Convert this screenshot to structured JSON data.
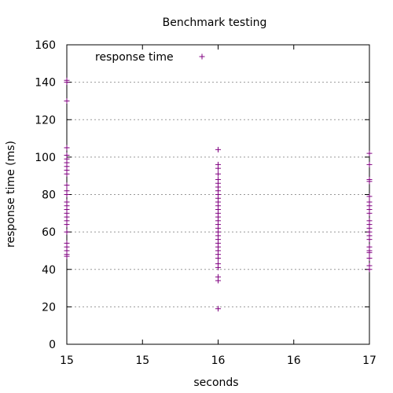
{
  "chart_data": {
    "type": "scatter",
    "title": "Benchmark testing",
    "xlabel": "seconds",
    "ylabel": "response time (ms)",
    "xlim": [
      15,
      17
    ],
    "ylim": [
      0,
      160
    ],
    "x_ticks": [
      {
        "value": 15,
        "label": "15"
      },
      {
        "value": 15.5,
        "label": "15"
      },
      {
        "value": 16,
        "label": "16"
      },
      {
        "value": 16.5,
        "label": "16"
      },
      {
        "value": 17,
        "label": "17"
      }
    ],
    "y_ticks": [
      0,
      20,
      40,
      60,
      80,
      100,
      120,
      140,
      160
    ],
    "grid": "horizontal dotted",
    "legend_position": "top-left",
    "marker": "+",
    "series": [
      {
        "name": "response time",
        "color": "#800080",
        "points": [
          [
            15,
            141
          ],
          [
            15,
            140
          ],
          [
            15,
            130
          ],
          [
            15,
            105
          ],
          [
            15,
            101
          ],
          [
            15,
            99
          ],
          [
            15,
            97
          ],
          [
            15,
            95
          ],
          [
            15,
            93
          ],
          [
            15,
            91
          ],
          [
            15,
            85
          ],
          [
            15,
            82
          ],
          [
            15,
            80
          ],
          [
            15,
            76
          ],
          [
            15,
            74
          ],
          [
            15,
            72
          ],
          [
            15,
            70
          ],
          [
            15,
            68
          ],
          [
            15,
            66
          ],
          [
            15,
            64
          ],
          [
            15,
            60
          ],
          [
            15,
            54
          ],
          [
            15,
            52
          ],
          [
            15,
            50
          ],
          [
            15,
            48
          ],
          [
            15,
            47
          ],
          [
            16,
            104
          ],
          [
            16,
            96
          ],
          [
            16,
            94
          ],
          [
            16,
            91
          ],
          [
            16,
            88
          ],
          [
            16,
            86
          ],
          [
            16,
            84
          ],
          [
            16,
            82
          ],
          [
            16,
            80
          ],
          [
            16,
            78
          ],
          [
            16,
            76
          ],
          [
            16,
            74
          ],
          [
            16,
            72
          ],
          [
            16,
            70
          ],
          [
            16,
            68
          ],
          [
            16,
            66
          ],
          [
            16,
            64
          ],
          [
            16,
            62
          ],
          [
            16,
            60
          ],
          [
            16,
            58
          ],
          [
            16,
            56
          ],
          [
            16,
            54
          ],
          [
            16,
            52
          ],
          [
            16,
            50
          ],
          [
            16,
            48
          ],
          [
            16,
            46
          ],
          [
            16,
            43
          ],
          [
            16,
            41
          ],
          [
            16,
            36
          ],
          [
            16,
            34
          ],
          [
            16,
            19
          ],
          [
            17,
            102
          ],
          [
            17,
            96
          ],
          [
            17,
            88
          ],
          [
            17,
            87
          ],
          [
            17,
            79
          ],
          [
            17,
            76
          ],
          [
            17,
            74
          ],
          [
            17,
            72
          ],
          [
            17,
            70
          ],
          [
            17,
            66
          ],
          [
            17,
            64
          ],
          [
            17,
            62
          ],
          [
            17,
            60
          ],
          [
            17,
            58
          ],
          [
            17,
            56
          ],
          [
            17,
            52
          ],
          [
            17,
            50
          ],
          [
            17,
            49
          ],
          [
            17,
            46
          ],
          [
            17,
            42
          ],
          [
            17,
            40
          ]
        ]
      }
    ]
  }
}
